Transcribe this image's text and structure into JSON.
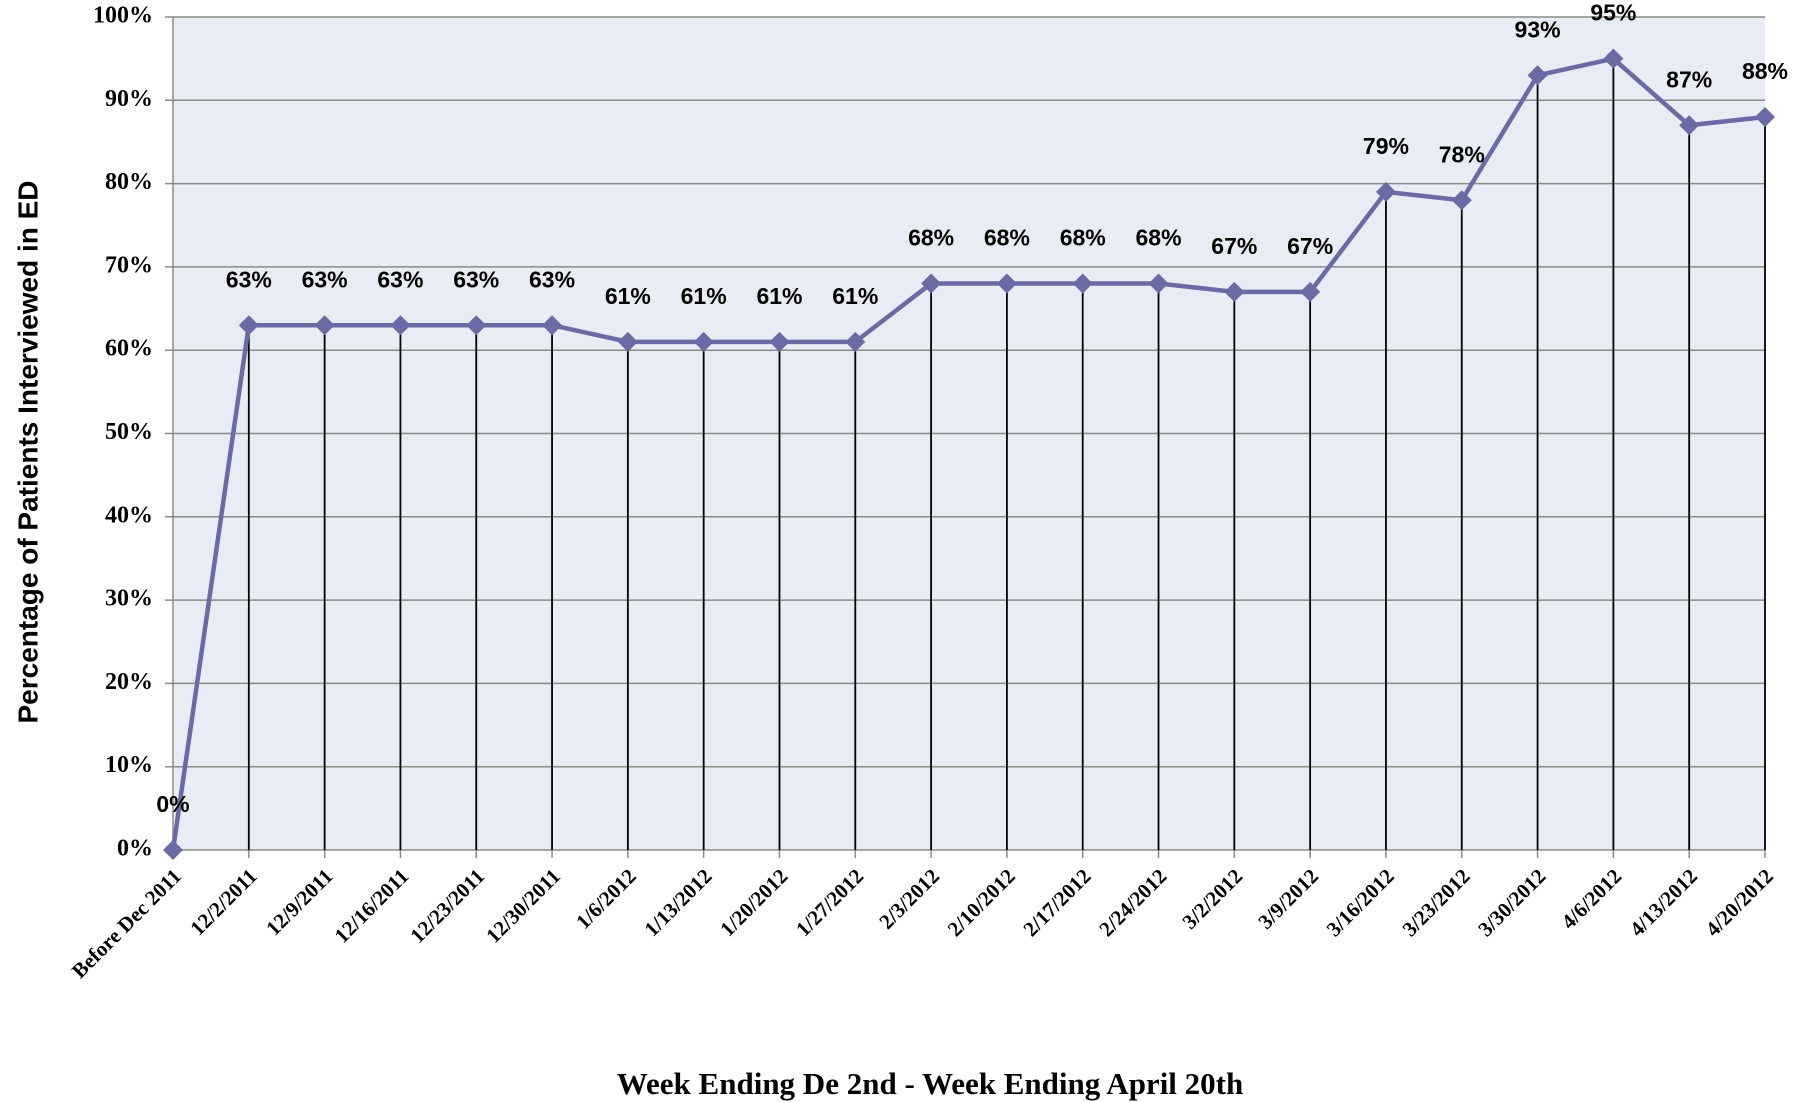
{
  "chart_data": {
    "type": "line",
    "xlabel": "Week Ending De 2nd - Week Ending April 20th",
    "ylabel": "Percentage of Patients Interviewed in ED",
    "categories": [
      "Before Dec 2011",
      "12/2/2011",
      "12/9/2011",
      "12/16/2011",
      "12/23/2011",
      "12/30/2011",
      "1/6/2012",
      "1/13/2012",
      "1/20/2012",
      "1/27/2012",
      "2/3/2012",
      "2/10/2012",
      "2/17/2012",
      "2/24/2012",
      "3/2/2012",
      "3/9/2012",
      "3/16/2012",
      "3/23/2012",
      "3/30/2012",
      "4/6/2012",
      "4/13/2012",
      "4/20/2012"
    ],
    "values": [
      0,
      63,
      63,
      63,
      63,
      63,
      61,
      61,
      61,
      61,
      68,
      68,
      68,
      68,
      67,
      67,
      79,
      78,
      93,
      95,
      87,
      88
    ],
    "value_labels": [
      "0%",
      "63%",
      "63%",
      "63%",
      "63%",
      "63%",
      "61%",
      "61%",
      "61%",
      "61%",
      "68%",
      "68%",
      "68%",
      "68%",
      "67%",
      "67%",
      "79%",
      "78%",
      "93%",
      "95%",
      "87%",
      "88%"
    ],
    "color": "#6a6aa4",
    "ylim": [
      0,
      100
    ],
    "yticks": [
      {
        "value": 0,
        "label": "0%"
      },
      {
        "value": 10,
        "label": "10%"
      },
      {
        "value": 20,
        "label": "20%"
      },
      {
        "value": 30,
        "label": "30%"
      },
      {
        "value": 40,
        "label": "40%"
      },
      {
        "value": 50,
        "label": "50%"
      },
      {
        "value": 60,
        "label": "60%"
      },
      {
        "value": 70,
        "label": "70%"
      },
      {
        "value": 80,
        "label": "80%"
      },
      {
        "value": 90,
        "label": "90%"
      },
      {
        "value": 100,
        "label": "100%"
      }
    ],
    "grid": true,
    "drop_lines": true
  }
}
